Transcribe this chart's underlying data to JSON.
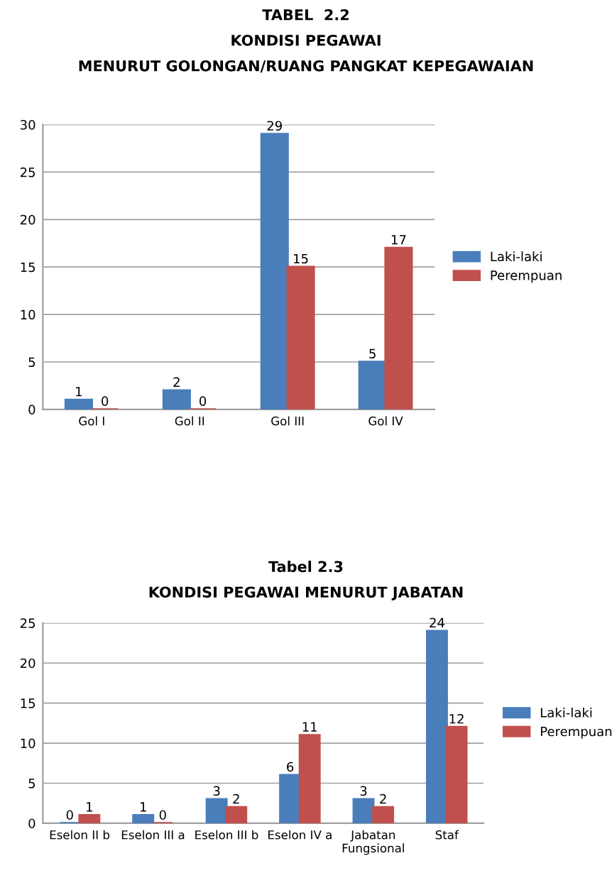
{
  "chart_data": [
    {
      "type": "bar",
      "title": "TABEL  2.2\nKONDISI PEGAWAI\nMENURUT GOLONGAN/RUANG PANGKAT KEPEGAWAIAN",
      "categories": [
        "Gol I",
        "Gol II",
        "Gol III",
        "Gol IV"
      ],
      "series": [
        {
          "name": "Laki-laki",
          "color": "#4a7ebb",
          "values": [
            1,
            2,
            29,
            5
          ]
        },
        {
          "name": "Perempuan",
          "color": "#c0504d",
          "values": [
            0,
            0,
            15,
            17
          ]
        }
      ],
      "ylim": [
        0,
        30
      ],
      "yticks": [
        0,
        5,
        10,
        15,
        20,
        25,
        30
      ],
      "grid": "y",
      "legend": "right",
      "data_labels": true
    },
    {
      "type": "bar",
      "title": "Tabel 2.3\nKONDISI PEGAWAI MENURUT JABATAN",
      "categories": [
        "Eselon II b",
        "Eselon III a",
        "Eselon III b",
        "Eselon IV a",
        "Jabatan\nFungsional",
        "Staf"
      ],
      "series": [
        {
          "name": "Laki-laki",
          "color": "#4a7ebb",
          "values": [
            0,
            1,
            3,
            6,
            3,
            24
          ]
        },
        {
          "name": "Perempuan",
          "color": "#c0504d",
          "values": [
            1,
            0,
            2,
            11,
            2,
            12
          ]
        }
      ],
      "ylim": [
        0,
        25
      ],
      "yticks": [
        0,
        5,
        10,
        15,
        20,
        25
      ],
      "grid": "y",
      "legend": "right",
      "data_labels": true
    }
  ]
}
